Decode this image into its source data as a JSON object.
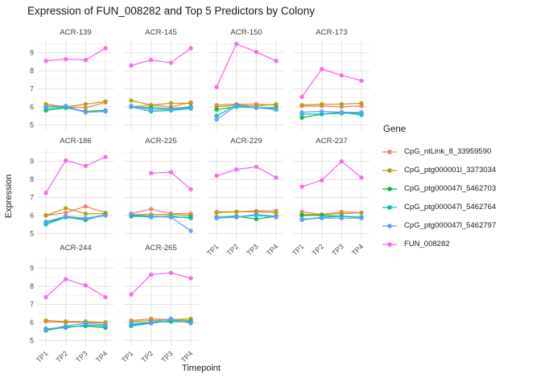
{
  "title": "Expression of FUN_008282 and Top 5 Predictors by Colony",
  "axis": {
    "x_label": "Timepoint",
    "y_label": "Expression",
    "x_ticks": [
      "TP1",
      "TP2",
      "TP3",
      "TP4"
    ],
    "y_ticks": [
      5,
      6,
      7,
      8,
      9
    ],
    "y_minor_ticks": [
      5.5,
      6.5,
      7.5,
      8.5,
      9.5
    ],
    "ylim": [
      4.7,
      9.7
    ]
  },
  "legend": {
    "title": "Gene",
    "entries": [
      {
        "label": "CpG_ntLink_8_33959590",
        "color": "#F8766D"
      },
      {
        "label": "CpG_ptg000001l_3373034",
        "color": "#B79F00"
      },
      {
        "label": "CpG_ptg000047l_5462703",
        "color": "#00BA38"
      },
      {
        "label": "CpG_ptg000047l_5462764",
        "color": "#00BFC4"
      },
      {
        "label": "CpG_ptg000047l_5462797",
        "color": "#619CFF"
      },
      {
        "label": "FUN_008282",
        "color": "#F564E3"
      }
    ]
  },
  "chart_data": {
    "type": "line",
    "x": [
      "TP1",
      "TP2",
      "TP3",
      "TP4"
    ],
    "genes": [
      {
        "label": "CpG_ntLink_8_33959590",
        "color": "#F8766D"
      },
      {
        "label": "CpG_ptg000001l_3373034",
        "color": "#B79F00"
      },
      {
        "label": "CpG_ptg000047l_5462703",
        "color": "#00BA38"
      },
      {
        "label": "CpG_ptg000047l_5462764",
        "color": "#00BFC4"
      },
      {
        "label": "CpG_ptg000047l_5462797",
        "color": "#619CFF"
      },
      {
        "label": "FUN_008282",
        "color": "#F564E3"
      }
    ],
    "facets": [
      {
        "name": "ACR-139",
        "values": [
          [
            6.05,
            6.0,
            5.95,
            6.25
          ],
          [
            6.15,
            6.0,
            6.15,
            6.3
          ],
          [
            5.8,
            5.95,
            5.75,
            5.8
          ],
          [
            5.9,
            6.0,
            5.7,
            5.75
          ],
          [
            6.0,
            6.05,
            5.7,
            5.75
          ],
          [
            8.55,
            8.65,
            8.6,
            9.25
          ]
        ]
      },
      {
        "name": "ACR-145",
        "values": [
          [
            6.0,
            6.1,
            6.0,
            6.25
          ],
          [
            6.35,
            6.1,
            6.2,
            6.2
          ],
          [
            6.0,
            5.95,
            5.9,
            6.0
          ],
          [
            6.0,
            5.75,
            5.8,
            5.9
          ],
          [
            6.05,
            5.85,
            5.85,
            5.95
          ],
          [
            8.3,
            8.6,
            8.45,
            9.25
          ]
        ]
      },
      {
        "name": "ACR-150",
        "values": [
          [
            6.1,
            6.15,
            6.15,
            6.1
          ],
          [
            6.0,
            6.1,
            6.05,
            6.15
          ],
          [
            5.85,
            6.0,
            5.95,
            5.95
          ],
          [
            5.5,
            6.1,
            5.95,
            5.85
          ],
          [
            5.3,
            6.05,
            5.95,
            5.9
          ],
          [
            7.1,
            9.5,
            9.05,
            8.55
          ]
        ]
      },
      {
        "name": "ACR-173",
        "values": [
          [
            6.05,
            6.05,
            6.0,
            6.05
          ],
          [
            6.1,
            6.15,
            6.15,
            6.2
          ],
          [
            5.4,
            5.6,
            5.65,
            5.65
          ],
          [
            5.6,
            5.6,
            5.7,
            5.55
          ],
          [
            5.7,
            5.75,
            5.7,
            5.7
          ],
          [
            6.55,
            8.1,
            7.75,
            7.45
          ]
        ]
      },
      {
        "name": "ACR-186",
        "values": [
          [
            6.0,
            6.15,
            6.5,
            6.15
          ],
          [
            6.0,
            6.4,
            6.1,
            6.1
          ],
          [
            5.6,
            5.9,
            5.75,
            6.05
          ],
          [
            5.5,
            5.9,
            5.8,
            6.0
          ],
          [
            5.65,
            5.95,
            5.85,
            6.0
          ],
          [
            7.25,
            9.05,
            8.75,
            9.25
          ]
        ]
      },
      {
        "name": "ACR-225",
        "values": [
          [
            6.1,
            6.35,
            6.1,
            6.1
          ],
          [
            6.05,
            6.05,
            6.05,
            6.0
          ],
          [
            5.95,
            5.95,
            5.9,
            5.9
          ],
          [
            6.0,
            5.9,
            5.95,
            5.85
          ],
          [
            6.05,
            5.95,
            5.9,
            5.15
          ],
          [
            null,
            8.35,
            8.4,
            7.45
          ]
        ]
      },
      {
        "name": "ACR-229",
        "values": [
          [
            6.2,
            6.2,
            6.25,
            6.25
          ],
          [
            6.15,
            6.2,
            6.2,
            6.15
          ],
          [
            5.9,
            5.95,
            5.8,
            5.95
          ],
          [
            5.9,
            5.9,
            6.05,
            5.95
          ],
          [
            5.85,
            5.9,
            6.0,
            5.9
          ],
          [
            8.2,
            8.55,
            8.7,
            8.1
          ]
        ]
      },
      {
        "name": "ACR-237",
        "values": [
          [
            6.2,
            6.05,
            6.2,
            6.15
          ],
          [
            6.05,
            6.05,
            6.1,
            6.15
          ],
          [
            6.0,
            6.0,
            5.95,
            5.9
          ],
          [
            5.75,
            5.9,
            5.95,
            5.9
          ],
          [
            5.8,
            5.85,
            5.85,
            5.85
          ],
          [
            7.6,
            7.95,
            9.0,
            8.1
          ]
        ]
      },
      {
        "name": "ACR-244",
        "values": [
          [
            6.05,
            6.0,
            6.0,
            5.95
          ],
          [
            6.1,
            6.05,
            6.05,
            6.0
          ],
          [
            5.55,
            5.75,
            5.8,
            5.7
          ],
          [
            5.65,
            5.7,
            5.85,
            5.8
          ],
          [
            5.6,
            5.8,
            5.95,
            5.85
          ],
          [
            7.4,
            8.4,
            8.05,
            7.4
          ]
        ]
      },
      {
        "name": "ACR-265",
        "values": [
          [
            6.1,
            6.2,
            6.15,
            6.1
          ],
          [
            6.05,
            6.1,
            6.15,
            6.2
          ],
          [
            5.85,
            6.0,
            6.05,
            6.05
          ],
          [
            5.8,
            5.95,
            6.1,
            6.0
          ],
          [
            5.95,
            6.0,
            6.2,
            5.95
          ],
          [
            7.55,
            8.65,
            8.75,
            8.45
          ]
        ]
      }
    ],
    "layout": {
      "grid_major_color": "#E4E4E4",
      "grid_minor_color": "#EFEFEF",
      "tick_text_color": "#4d4d4d",
      "strip_text_color": "#404040",
      "legend_position": "right",
      "ncol": 4
    }
  }
}
